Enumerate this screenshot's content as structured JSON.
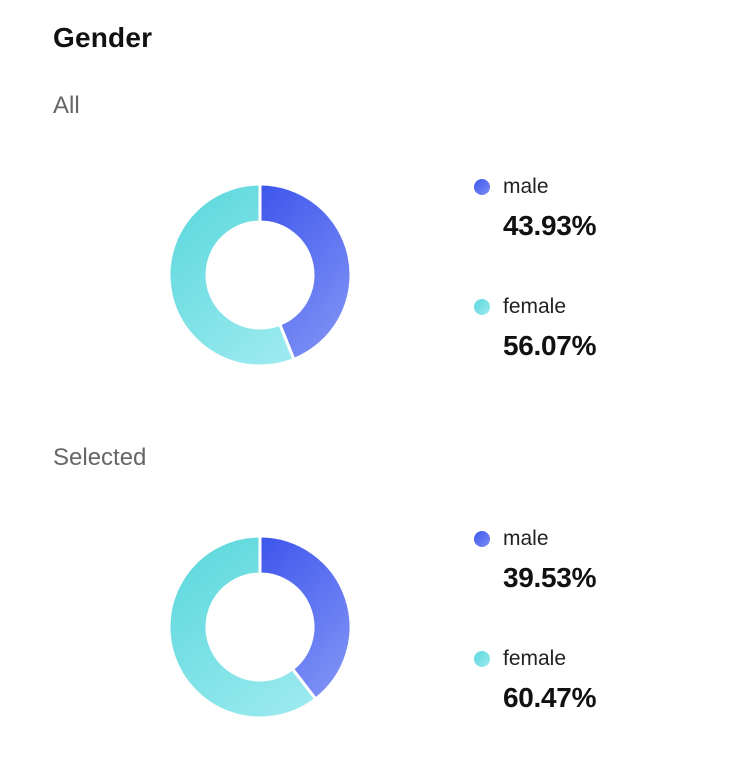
{
  "page": {
    "title": "Gender"
  },
  "colors": {
    "male_start": "#3d55ec",
    "male_end": "#7b8ef5",
    "female_start": "#5cd8dc",
    "female_end": "#9aeaef"
  },
  "legend_icons": {
    "male": "blue-dot-icon",
    "female": "teal-dot-icon"
  },
  "sections": [
    {
      "label": "All",
      "items": [
        {
          "name": "male",
          "value_text": "43.93%"
        },
        {
          "name": "female",
          "value_text": "56.07%"
        }
      ]
    },
    {
      "label": "Selected",
      "items": [
        {
          "name": "male",
          "value_text": "39.53%"
        },
        {
          "name": "female",
          "value_text": "60.47%"
        }
      ]
    }
  ],
  "chart_data": [
    {
      "type": "pie",
      "title": "All",
      "categories": [
        "male",
        "female"
      ],
      "values": [
        43.93,
        56.07
      ],
      "legend": "right"
    },
    {
      "type": "pie",
      "title": "Selected",
      "categories": [
        "male",
        "female"
      ],
      "values": [
        39.53,
        60.47
      ],
      "legend": "right"
    }
  ]
}
